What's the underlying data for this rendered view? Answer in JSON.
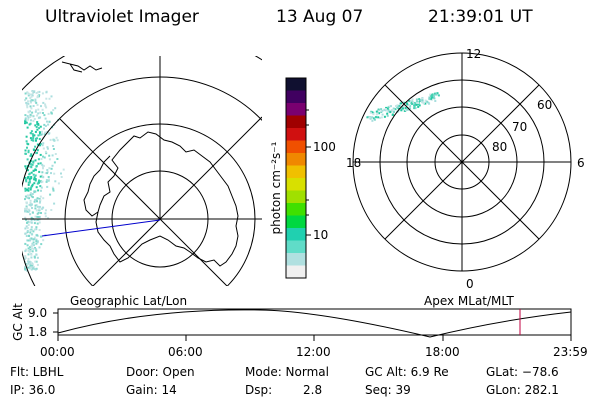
{
  "header": {
    "title": "Ultraviolet Imager",
    "date": "13 Aug 07",
    "time": "21:39:01 UT"
  },
  "colorbar": {
    "label": "photon cm⁻²s⁻¹",
    "ticks": [
      "100",
      "10"
    ],
    "colors": [
      "#101030",
      "#400060",
      "#7a0070",
      "#a00000",
      "#d01010",
      "#f05000",
      "#f08800",
      "#f0c000",
      "#d8e000",
      "#a0e000",
      "#40e000",
      "#00d840",
      "#20d0b0",
      "#60dcc8",
      "#b0e0e0",
      "#f0f0f0"
    ]
  },
  "maps": {
    "left_label": "Geographic Lat/Lon",
    "right_label": "Apex MLat/MLT",
    "mlt_labels": {
      "top": "12",
      "right": "6",
      "bottom": "0",
      "left": "18"
    },
    "mlat_labels": [
      "60",
      "70",
      "80"
    ]
  },
  "orbit_plot": {
    "ylabel": "GC Alt",
    "yticks": [
      "9.0",
      "1.8"
    ],
    "xticks": [
      "00:00",
      "06:00",
      "12:00",
      "18:00",
      "23:59"
    ],
    "marker_color": "#c00040"
  },
  "footer": {
    "flt": "Flt: LBHL",
    "ip": "IP: 36.0",
    "door": "Door: Open",
    "gain": "Gain: 14",
    "mode": "Mode: Normal",
    "dsp_label": "Dsp:",
    "dsp_value": "2.8",
    "gcalt": "GC Alt: 6.9 Re",
    "seq": "Seq: 39",
    "glat": "GLat: −78.6",
    "glon": "GLon: 282.1"
  }
}
